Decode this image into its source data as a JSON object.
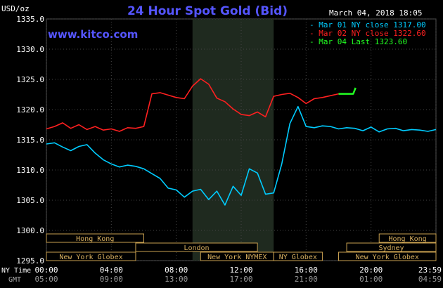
{
  "header": {
    "title": "24 Hour Spot Gold (Bid)",
    "timestamp": "March 04, 2018 18:05",
    "website": "www.kitco.com",
    "unit": "USD/oz"
  },
  "legend": [
    {
      "label": "Mar 01 NY close 1317.00",
      "color": "#00ccff"
    },
    {
      "label": "Mar 02 NY close 1322.60",
      "color": "#ff2020"
    },
    {
      "label": "Mar 04 Last 1323.60",
      "color": "#22ff22"
    }
  ],
  "sessions": [
    {
      "label": "Hong Kong",
      "start": 0,
      "end": 6
    },
    {
      "label": "London",
      "start": 5.5,
      "end": 13
    },
    {
      "label": "New York Globex",
      "start": 0,
      "end": 5.5
    },
    {
      "label": "New York NYMEX",
      "start": 9.5,
      "end": 14
    },
    {
      "label": "NY Globex",
      "start": 14,
      "end": 17
    },
    {
      "label": "Hong Kong",
      "start": 20.5,
      "end": 24
    },
    {
      "label": "Sydney",
      "start": 18.5,
      "end": 24
    },
    {
      "label": "New York Globex",
      "start": 18,
      "end": 24
    }
  ],
  "axis_labels": {
    "ny_time": "NY Time",
    "gmt": "GMT"
  },
  "chart_data": {
    "type": "line",
    "ylabel": "USD/oz",
    "ylim": [
      1295.0,
      1335.0
    ],
    "yticks": [
      1295.0,
      1300.0,
      1305.0,
      1310.0,
      1315.0,
      1320.0,
      1325.0,
      1330.0,
      1335.0
    ],
    "xlim": [
      0,
      24
    ],
    "xticks": [
      0,
      4,
      8,
      12,
      16,
      20,
      24
    ],
    "xtick_labels": [
      "00:00",
      "04:00",
      "08:00",
      "12:00",
      "16:00",
      "20:00",
      "23:59"
    ],
    "gmt_tick_labels": [
      "05:00",
      "09:00",
      "13:00",
      "17:00",
      "21:00",
      "01:00",
      "04:59"
    ],
    "shaded_region": [
      9.0,
      14.0
    ],
    "grid": true,
    "series": [
      {
        "name": "Mar 01 NY close 1317.00",
        "color": "#00ccff",
        "x": [
          0,
          0.5,
          1,
          1.5,
          2,
          2.5,
          3,
          3.5,
          4,
          4.5,
          5,
          5.5,
          6,
          6.5,
          7,
          7.5,
          8,
          8.5,
          9,
          9.5,
          10,
          10.5,
          11,
          11.5,
          12,
          12.5,
          13,
          13.5,
          14,
          14.5,
          15,
          15.5,
          16,
          16.5,
          17,
          17.5,
          18,
          18.5,
          19,
          19.5,
          20,
          20.5,
          21,
          21.5,
          22,
          22.5,
          23,
          23.5,
          24
        ],
        "y": [
          1314.3,
          1314.5,
          1313.8,
          1313.2,
          1313.9,
          1314.2,
          1312.8,
          1311.7,
          1311.0,
          1310.5,
          1310.8,
          1310.6,
          1310.2,
          1309.4,
          1308.6,
          1307.0,
          1306.7,
          1305.5,
          1306.5,
          1306.8,
          1305.1,
          1306.5,
          1304.2,
          1307.3,
          1305.8,
          1310.2,
          1309.5,
          1306.0,
          1306.2,
          1311.0,
          1317.7,
          1320.5,
          1317.2,
          1317.0,
          1317.3,
          1317.2,
          1316.8,
          1317.0,
          1316.9,
          1316.5,
          1317.1,
          1316.3,
          1316.8,
          1316.9,
          1316.5,
          1316.7,
          1316.6,
          1316.4,
          1316.7
        ]
      },
      {
        "name": "Mar 02 NY close 1322.60",
        "color": "#ff2020",
        "x": [
          0,
          0.5,
          1,
          1.5,
          2,
          2.5,
          3,
          3.5,
          4,
          4.5,
          5,
          5.5,
          6,
          6.5,
          7,
          7.5,
          8,
          8.5,
          9,
          9.5,
          10,
          10.5,
          11,
          11.5,
          12,
          12.5,
          13,
          13.5,
          14,
          14.5,
          15,
          15.5,
          16,
          16.5,
          17,
          17.5,
          18
        ],
        "y": [
          1316.8,
          1317.2,
          1317.8,
          1316.9,
          1317.5,
          1316.7,
          1317.2,
          1316.6,
          1316.8,
          1316.4,
          1317.0,
          1316.9,
          1317.2,
          1322.6,
          1322.8,
          1322.4,
          1322.0,
          1321.8,
          1323.9,
          1325.1,
          1324.2,
          1321.9,
          1321.3,
          1320.1,
          1319.2,
          1319.0,
          1319.6,
          1318.8,
          1322.2,
          1322.5,
          1322.7,
          1322.0,
          1321.0,
          1321.8,
          1322.0,
          1322.3,
          1322.6
        ]
      },
      {
        "name": "Mar 04 Last 1323.60",
        "color": "#22ff22",
        "x": [
          18.0,
          18.9,
          19.05
        ],
        "y": [
          1322.6,
          1322.6,
          1323.6
        ]
      }
    ]
  }
}
